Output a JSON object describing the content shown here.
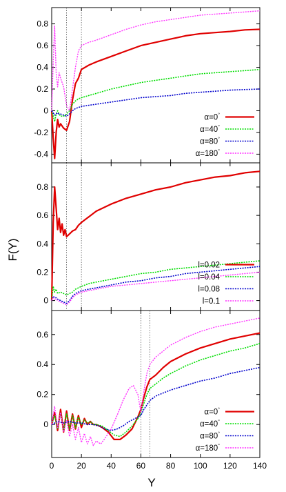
{
  "figure": {
    "ylabel": "F(Y)",
    "xlabel": "Y",
    "xticks": [
      "0",
      "20",
      "40",
      "60",
      "80",
      "100",
      "120",
      "140"
    ]
  },
  "colors": {
    "series1": "#e00000",
    "series2": "#00dd00",
    "series3": "#0000cc",
    "series4": "#ff33ff",
    "refline": "#555555"
  },
  "chart_data": [
    {
      "type": "line",
      "panel": "top",
      "xlim": [
        0,
        140
      ],
      "ylim": [
        -0.48,
        0.95
      ],
      "yticks": [
        "-0.4",
        "-0.2",
        "0",
        "0.2",
        "0.4",
        "0.6",
        "0.8"
      ],
      "ytick_values": [
        -0.4,
        -0.2,
        0,
        0.2,
        0.4,
        0.6,
        0.8
      ],
      "vlines": [
        10,
        20
      ],
      "legend_position": "bottom-right",
      "series": [
        {
          "name": "α=0",
          "sup": "°",
          "color": "#e00000",
          "width": 2.2,
          "x": [
            0,
            1,
            2,
            3,
            4,
            5,
            6,
            8,
            10,
            12,
            14,
            16,
            18,
            20,
            25,
            30,
            40,
            50,
            60,
            70,
            80,
            90,
            100,
            110,
            120,
            130,
            140
          ],
          "y": [
            0.0,
            -0.25,
            -0.44,
            -0.2,
            -0.08,
            -0.15,
            -0.12,
            -0.16,
            -0.18,
            -0.1,
            0.1,
            0.25,
            0.3,
            0.38,
            0.42,
            0.45,
            0.5,
            0.55,
            0.6,
            0.63,
            0.66,
            0.69,
            0.71,
            0.72,
            0.73,
            0.745,
            0.75
          ]
        },
        {
          "name": "α=40",
          "sup": "°",
          "color": "#00dd00",
          "width": 1.6,
          "x": [
            0,
            1,
            2,
            3,
            4,
            5,
            6,
            8,
            10,
            12,
            14,
            16,
            18,
            20,
            25,
            30,
            40,
            50,
            60,
            70,
            80,
            90,
            100,
            110,
            120,
            130,
            140
          ],
          "y": [
            0.0,
            -0.05,
            -0.1,
            -0.03,
            0.0,
            -0.03,
            -0.05,
            -0.05,
            -0.03,
            0.0,
            0.06,
            0.09,
            0.11,
            0.12,
            0.14,
            0.16,
            0.2,
            0.23,
            0.26,
            0.28,
            0.3,
            0.32,
            0.34,
            0.35,
            0.36,
            0.37,
            0.38
          ]
        },
        {
          "name": "α=80",
          "sup": "°",
          "color": "#0000cc",
          "width": 1.6,
          "x": [
            0,
            1,
            2,
            3,
            4,
            5,
            6,
            8,
            10,
            12,
            14,
            16,
            18,
            20,
            25,
            30,
            40,
            50,
            60,
            70,
            80,
            90,
            100,
            110,
            120,
            130,
            140
          ],
          "y": [
            0.0,
            -0.02,
            -0.04,
            -0.03,
            -0.02,
            -0.03,
            -0.03,
            -0.04,
            -0.05,
            -0.03,
            0.0,
            0.02,
            0.03,
            0.04,
            0.05,
            0.06,
            0.08,
            0.1,
            0.12,
            0.13,
            0.14,
            0.16,
            0.17,
            0.18,
            0.19,
            0.195,
            0.2
          ]
        },
        {
          "name": "α=180",
          "sup": "°",
          "color": "#ff33ff",
          "width": 1.4,
          "x": [
            0,
            1,
            2,
            3,
            4,
            5,
            6,
            8,
            10,
            12,
            14,
            16,
            18,
            20,
            25,
            30,
            40,
            50,
            60,
            70,
            80,
            90,
            100,
            110,
            120,
            130,
            140
          ],
          "y": [
            0.0,
            0.45,
            0.78,
            0.35,
            0.22,
            0.35,
            0.3,
            0.22,
            0.05,
            0.0,
            0.2,
            0.4,
            0.55,
            0.6,
            0.63,
            0.65,
            0.7,
            0.75,
            0.79,
            0.82,
            0.84,
            0.86,
            0.88,
            0.89,
            0.9,
            0.91,
            0.92
          ]
        }
      ]
    },
    {
      "type": "line",
      "panel": "middle",
      "xlim": [
        0,
        140
      ],
      "ylim": [
        -0.07,
        0.97
      ],
      "yticks": [
        "0",
        "0.2",
        "0.4",
        "0.6",
        "0.8"
      ],
      "ytick_values": [
        0,
        0.2,
        0.4,
        0.6,
        0.8
      ],
      "vlines": [
        10,
        20
      ],
      "legend_position": "bottom-right",
      "series": [
        {
          "name": "l=0.02",
          "sup": "",
          "color": "#e00000",
          "width": 2.2,
          "x": [
            0,
            1,
            2,
            3,
            4,
            5,
            6,
            7,
            8,
            9,
            10,
            12,
            14,
            16,
            18,
            20,
            25,
            30,
            40,
            50,
            60,
            70,
            80,
            90,
            100,
            110,
            120,
            130,
            140
          ],
          "y": [
            0.0,
            0.55,
            0.8,
            0.65,
            0.5,
            0.58,
            0.48,
            0.54,
            0.46,
            0.5,
            0.45,
            0.47,
            0.49,
            0.5,
            0.53,
            0.55,
            0.59,
            0.63,
            0.68,
            0.72,
            0.75,
            0.78,
            0.8,
            0.83,
            0.85,
            0.87,
            0.88,
            0.9,
            0.91
          ]
        },
        {
          "name": "l=0.04",
          "sup": "",
          "color": "#00dd00",
          "width": 1.6,
          "x": [
            0,
            1,
            2,
            3,
            4,
            6,
            8,
            10,
            12,
            14,
            16,
            18,
            20,
            25,
            30,
            40,
            50,
            60,
            70,
            80,
            90,
            100,
            110,
            120,
            130,
            140
          ],
          "y": [
            0.0,
            0.1,
            0.06,
            0.08,
            0.05,
            0.06,
            0.05,
            0.04,
            0.05,
            0.06,
            0.08,
            0.09,
            0.1,
            0.12,
            0.13,
            0.15,
            0.17,
            0.19,
            0.2,
            0.22,
            0.23,
            0.24,
            0.25,
            0.26,
            0.27,
            0.28
          ]
        },
        {
          "name": "l=0.08",
          "sup": "",
          "color": "#0000cc",
          "width": 1.6,
          "x": [
            0,
            1,
            2,
            3,
            4,
            6,
            8,
            10,
            12,
            14,
            16,
            18,
            20,
            25,
            30,
            40,
            50,
            60,
            70,
            80,
            90,
            100,
            110,
            120,
            130,
            140
          ],
          "y": [
            0.0,
            0.03,
            0.02,
            0.02,
            0.01,
            0.0,
            -0.01,
            -0.02,
            0.0,
            0.03,
            0.05,
            0.06,
            0.07,
            0.08,
            0.09,
            0.11,
            0.13,
            0.14,
            0.16,
            0.17,
            0.19,
            0.2,
            0.21,
            0.22,
            0.23,
            0.24
          ]
        },
        {
          "name": "l=0.1",
          "sup": "",
          "color": "#ff33ff",
          "width": 1.4,
          "x": [
            0,
            1,
            2,
            3,
            4,
            6,
            8,
            10,
            12,
            14,
            16,
            18,
            20,
            25,
            30,
            40,
            50,
            60,
            70,
            80,
            90,
            100,
            110,
            120,
            130,
            140
          ],
          "y": [
            0.0,
            0.02,
            0.01,
            0.01,
            0.0,
            -0.01,
            -0.02,
            -0.03,
            -0.01,
            0.02,
            0.04,
            0.05,
            0.06,
            0.07,
            0.08,
            0.1,
            0.11,
            0.12,
            0.13,
            0.14,
            0.15,
            0.16,
            0.17,
            0.18,
            0.19,
            0.2
          ]
        }
      ]
    },
    {
      "type": "line",
      "panel": "bottom",
      "xlim": [
        0,
        140
      ],
      "ylim": [
        -0.22,
        0.76
      ],
      "yticks": [
        "0",
        "0.2",
        "0.4",
        "0.6"
      ],
      "ytick_values": [
        0,
        0.2,
        0.4,
        0.6
      ],
      "vlines": [
        60,
        66
      ],
      "legend_position": "bottom-right",
      "series": [
        {
          "name": "α=0",
          "sup": "°",
          "color": "#e00000",
          "width": 2.2,
          "x": [
            0,
            2,
            4,
            6,
            8,
            10,
            12,
            14,
            16,
            18,
            20,
            22,
            24,
            26,
            28,
            30,
            34,
            38,
            42,
            46,
            50,
            54,
            58,
            60,
            62,
            64,
            66,
            70,
            75,
            80,
            90,
            100,
            110,
            120,
            130,
            140
          ],
          "y": [
            0.0,
            0.08,
            -0.04,
            0.1,
            -0.05,
            0.09,
            -0.04,
            0.07,
            -0.03,
            0.06,
            -0.02,
            0.04,
            0.0,
            0.02,
            0.0,
            0.0,
            -0.02,
            -0.05,
            -0.1,
            -0.1,
            -0.07,
            -0.03,
            0.05,
            0.1,
            0.18,
            0.25,
            0.3,
            0.33,
            0.38,
            0.42,
            0.47,
            0.51,
            0.54,
            0.57,
            0.59,
            0.61
          ]
        },
        {
          "name": "α=40",
          "sup": "°",
          "color": "#00dd00",
          "width": 1.6,
          "x": [
            0,
            2,
            4,
            6,
            8,
            10,
            12,
            14,
            16,
            18,
            20,
            22,
            24,
            26,
            28,
            30,
            34,
            38,
            42,
            46,
            50,
            54,
            58,
            60,
            62,
            64,
            66,
            70,
            75,
            80,
            90,
            100,
            110,
            120,
            130,
            140
          ],
          "y": [
            0.0,
            0.06,
            -0.03,
            0.08,
            -0.04,
            0.07,
            -0.03,
            0.06,
            -0.02,
            0.05,
            0.0,
            0.03,
            0.01,
            0.02,
            0.0,
            0.0,
            -0.01,
            -0.04,
            -0.07,
            -0.08,
            -0.05,
            -0.01,
            0.04,
            0.08,
            0.14,
            0.2,
            0.24,
            0.27,
            0.31,
            0.34,
            0.39,
            0.43,
            0.46,
            0.49,
            0.51,
            0.54
          ]
        },
        {
          "name": "α=80",
          "sup": "°",
          "color": "#0000cc",
          "width": 1.6,
          "x": [
            0,
            4,
            8,
            12,
            16,
            20,
            24,
            28,
            32,
            36,
            40,
            44,
            48,
            52,
            56,
            60,
            62,
            64,
            66,
            70,
            75,
            80,
            90,
            100,
            110,
            120,
            130,
            140
          ],
          "y": [
            0.0,
            0.02,
            0.01,
            0.02,
            0.01,
            0.01,
            0.0,
            0.0,
            -0.01,
            -0.03,
            -0.04,
            -0.03,
            -0.01,
            0.02,
            0.04,
            0.06,
            0.1,
            0.13,
            0.16,
            0.19,
            0.21,
            0.23,
            0.26,
            0.29,
            0.31,
            0.34,
            0.36,
            0.38
          ]
        },
        {
          "name": "α=180",
          "sup": "°",
          "color": "#ff33ff",
          "width": 1.4,
          "x": [
            0,
            2,
            4,
            6,
            8,
            10,
            12,
            14,
            16,
            18,
            20,
            22,
            24,
            26,
            28,
            30,
            33,
            36,
            40,
            44,
            48,
            52,
            55,
            58,
            60,
            62,
            64,
            66,
            70,
            75,
            80,
            90,
            100,
            110,
            120,
            130,
            140
          ],
          "y": [
            0.0,
            0.12,
            -0.02,
            0.08,
            -0.05,
            0.03,
            -0.08,
            0.0,
            -0.1,
            -0.02,
            -0.12,
            -0.06,
            -0.13,
            -0.08,
            -0.14,
            -0.11,
            -0.13,
            -0.09,
            -0.03,
            0.06,
            0.16,
            0.24,
            0.26,
            0.2,
            0.08,
            0.22,
            0.34,
            0.4,
            0.45,
            0.49,
            0.53,
            0.58,
            0.62,
            0.65,
            0.67,
            0.69,
            0.71
          ]
        }
      ]
    }
  ]
}
